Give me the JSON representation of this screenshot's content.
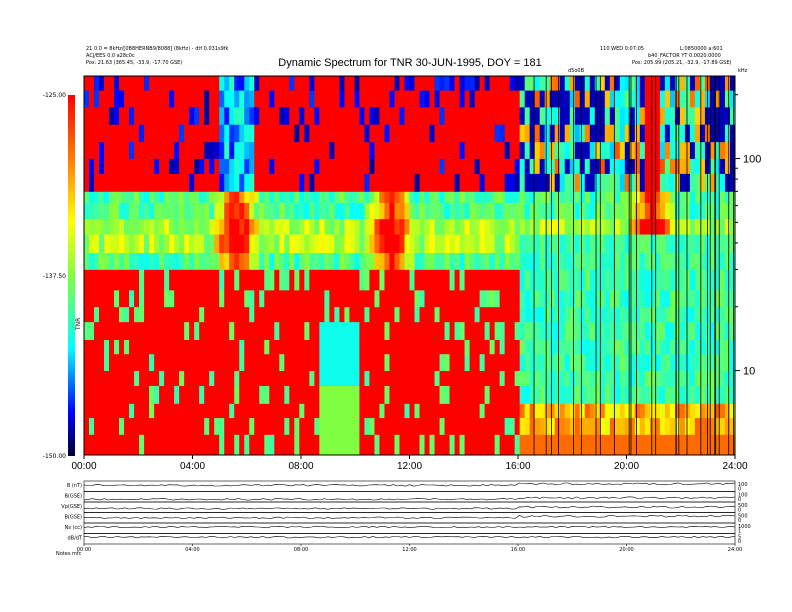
{
  "header": {
    "title": "Dynamic Spectrum for TNR 30-JUN-1995, DOY = 181",
    "left_line1": "21 0.0 = 8kHz/[0B8HERNB9/8088] (8kHz) - dtf 0.031s9fk",
    "left_line2": "ACJ/EES 0.0 a28c0c",
    "left_pos": "Pos:   21.63 (365.45, -33.9, -17.70 GSE)",
    "right_line1": "110 WED 0:07:05",
    "right_line2": "L:0850000 a:601",
    "right_line3": "b40_FACTOR  YT 0.0020.0000",
    "right_pos": "Pos:   205.99 (205.21, -32.9, -17.89 GSE)",
    "top_marker": "d5o0B",
    "top_unit": "kHz"
  },
  "colorbar": {
    "label": "TNR",
    "ticks": [
      "-125.00",
      "-137.50",
      "-150.00"
    ],
    "colors": [
      "#ff0000",
      "#ffff00",
      "#00ffff",
      "#0000ff",
      "#000000"
    ]
  },
  "chart_data": [
    {
      "type": "heatmap",
      "title": "Dynamic Spectrum for TNR 30-JUN-1995, DOY = 181",
      "xlabel": "",
      "ylabel": "kHz",
      "x_ticks": [
        "00:00",
        "04:00",
        "08:00",
        "12:00",
        "16:00",
        "20:00",
        "24:00"
      ],
      "x_range_hours": [
        0,
        24
      ],
      "y_ticks": [
        10,
        100
      ],
      "y_range_khz": [
        4,
        245
      ],
      "y_scale": "log",
      "color_range_db": [
        -150.0,
        -125.0
      ],
      "color_label": "TNR",
      "bands_khz": [
        {
          "from": 4,
          "to": 30,
          "hours_0_16": "red/striped",
          "hours_16_24": "cyan/green"
        },
        {
          "from": 30,
          "to": 70,
          "hours_0_16": "cyan/yellow with orange burst near 05:30",
          "hours_16_24": "cyan/yellow"
        },
        {
          "from": 70,
          "to": 245,
          "hours_0_16": "red/striped",
          "hours_16_24": "blue/black/yellow"
        }
      ],
      "burst_times_hours": [
        5.6,
        11.3,
        20.9
      ],
      "grid": false
    },
    {
      "type": "line",
      "panels": [
        {
          "label": "B (nT)",
          "right_ticks": [
            "100",
            "0"
          ]
        },
        {
          "label": "B(GSE)",
          "right_ticks": [
            "100",
            "0"
          ]
        },
        {
          "label": "Vp(GSE)",
          "right_ticks": [
            "500",
            "0"
          ]
        },
        {
          "label": "B(GSE)",
          "right_ticks": [
            "500",
            "0"
          ]
        },
        {
          "label": "Ns (cc)",
          "right_ticks": [
            "1000",
            "1"
          ]
        },
        {
          "label": "dB/dT",
          "right_ticks": [
            "5",
            "0"
          ]
        }
      ],
      "x_ticks": [
        "00:00",
        "04:00",
        "08:00",
        "12:00",
        "16:00",
        "20:00",
        "24:00"
      ],
      "footer_label": "Notes  mfc"
    }
  ]
}
